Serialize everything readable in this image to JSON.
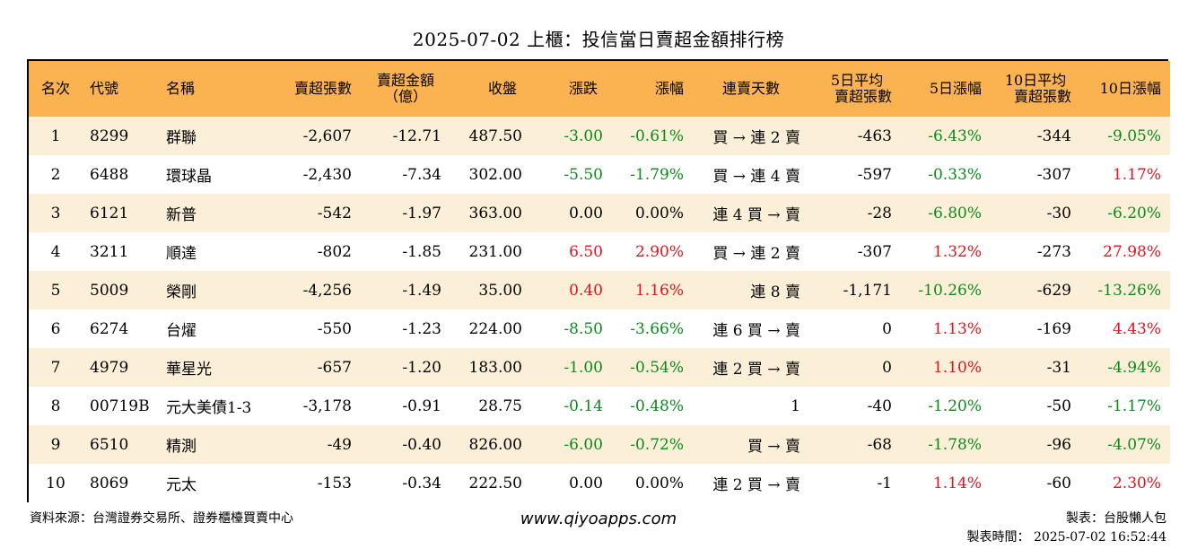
{
  "title": "2025-07-02 上櫃：投信當日賣超金額排行榜",
  "headers": {
    "rank": "名次",
    "code": "代號",
    "name": "名稱",
    "sell_shares_l1": "賣超張數",
    "sell_amount_l1": "賣超金額",
    "sell_amount_l2": "（億）",
    "close": "收盤",
    "change": "漲跌",
    "change_pct": "漲幅",
    "streak": "連賣天數",
    "avg5_l1": "5日平均",
    "avg5_l2": "賣超張數",
    "chg5": "5日漲幅",
    "avg10_l1": "10日平均",
    "avg10_l2": "賣超張數",
    "chg10": "10日漲幅"
  },
  "rows": [
    {
      "rank": "1",
      "code": "8299",
      "name": "群聯",
      "sell_shares": "-2,607",
      "sell_amount": "-12.71",
      "close": "487.50",
      "change": "-3.00",
      "change_pct": "-0.61%",
      "streak": "買 → 連 2 賣",
      "avg5": "-463",
      "chg5": "-6.43%",
      "avg10": "-344",
      "chg10": "-9.05%"
    },
    {
      "rank": "2",
      "code": "6488",
      "name": "環球晶",
      "sell_shares": "-2,430",
      "sell_amount": "-7.34",
      "close": "302.00",
      "change": "-5.50",
      "change_pct": "-1.79%",
      "streak": "買 → 連 4 賣",
      "avg5": "-597",
      "chg5": "-0.33%",
      "avg10": "-307",
      "chg10": "1.17%"
    },
    {
      "rank": "3",
      "code": "6121",
      "name": "新普",
      "sell_shares": "-542",
      "sell_amount": "-1.97",
      "close": "363.00",
      "change": "0.00",
      "change_pct": "0.00%",
      "streak": "連 4 買 → 賣",
      "avg5": "-28",
      "chg5": "-6.80%",
      "avg10": "-30",
      "chg10": "-6.20%"
    },
    {
      "rank": "4",
      "code": "3211",
      "name": "順達",
      "sell_shares": "-802",
      "sell_amount": "-1.85",
      "close": "231.00",
      "change": "6.50",
      "change_pct": "2.90%",
      "streak": "買 → 連 2 賣",
      "avg5": "-307",
      "chg5": "1.32%",
      "avg10": "-273",
      "chg10": "27.98%"
    },
    {
      "rank": "5",
      "code": "5009",
      "name": "榮剛",
      "sell_shares": "-4,256",
      "sell_amount": "-1.49",
      "close": "35.00",
      "change": "0.40",
      "change_pct": "1.16%",
      "streak": "連 8 賣",
      "avg5": "-1,171",
      "chg5": "-10.26%",
      "avg10": "-629",
      "chg10": "-13.26%"
    },
    {
      "rank": "6",
      "code": "6274",
      "name": "台燿",
      "sell_shares": "-550",
      "sell_amount": "-1.23",
      "close": "224.00",
      "change": "-8.50",
      "change_pct": "-3.66%",
      "streak": "連 6 買 → 賣",
      "avg5": "0",
      "chg5": "1.13%",
      "avg10": "-169",
      "chg10": "4.43%"
    },
    {
      "rank": "7",
      "code": "4979",
      "name": "華星光",
      "sell_shares": "-657",
      "sell_amount": "-1.20",
      "close": "183.00",
      "change": "-1.00",
      "change_pct": "-0.54%",
      "streak": "連 2 買 → 賣",
      "avg5": "0",
      "chg5": "1.10%",
      "avg10": "-31",
      "chg10": "-4.94%"
    },
    {
      "rank": "8",
      "code": "00719B",
      "name": "元大美債1-3",
      "sell_shares": "-3,178",
      "sell_amount": "-0.91",
      "close": "28.75",
      "change": "-0.14",
      "change_pct": "-0.48%",
      "streak": "1",
      "avg5": "-40",
      "chg5": "-1.20%",
      "avg10": "-50",
      "chg10": "-1.17%"
    },
    {
      "rank": "9",
      "code": "6510",
      "name": "精測",
      "sell_shares": "-49",
      "sell_amount": "-0.40",
      "close": "826.00",
      "change": "-6.00",
      "change_pct": "-0.72%",
      "streak": "買 → 賣",
      "avg5": "-68",
      "chg5": "-1.78%",
      "avg10": "-96",
      "chg10": "-4.07%"
    },
    {
      "rank": "10",
      "code": "8069",
      "name": "元太",
      "sell_shares": "-153",
      "sell_amount": "-0.34",
      "close": "222.50",
      "change": "0.00",
      "change_pct": "0.00%",
      "streak": "連 2 買 → 賣",
      "avg5": "-1",
      "chg5": "1.14%",
      "avg10": "-60",
      "chg10": "2.30%"
    }
  ],
  "colors": {
    "header_bg": "#fbb352",
    "stripe_bg": "#fcefd7",
    "positive": "#e0141e",
    "negative": "#0a8a1a"
  },
  "footer": {
    "source": "資料來源：台灣證券交易所、證券櫃檯買賣中心",
    "website": "www.qiyoapps.com",
    "author": "製表：台股懶人包",
    "timestamp": "製表時間： 2025-07-02 16:52:44"
  }
}
